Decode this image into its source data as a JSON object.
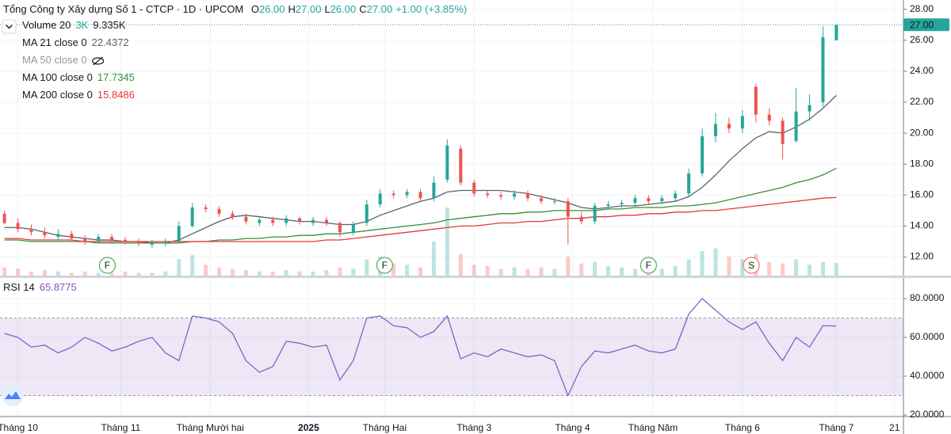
{
  "chart_data": [
    {
      "type": "candlestick",
      "title": "Tổng Công ty Xây dựng Số 1 - CTCP · 1D · UPCOM",
      "ohlc": [
        {
          "key": "O",
          "value": 26,
          "label": "26.00"
        },
        {
          "key": "H",
          "value": 27,
          "label": "27.00"
        },
        {
          "key": "L",
          "value": 26,
          "label": "26.00"
        },
        {
          "key": "C",
          "value": 27,
          "label": "27.00"
        }
      ],
      "change": [
        {
          "value": 1,
          "label": "+1.00"
        },
        {
          "value": 3.85,
          "label": "(+3.85%)"
        }
      ],
      "up_color": "#26a69a",
      "down_color": "#ef5350",
      "x": [
        1,
        4,
        7,
        10,
        13,
        16,
        19,
        22,
        25,
        28,
        31,
        34,
        37,
        40,
        43,
        46,
        49,
        52,
        55,
        58,
        61,
        64,
        67,
        70,
        73,
        76,
        79,
        82,
        85,
        88,
        91,
        94,
        97,
        100,
        103,
        106,
        109,
        112,
        115,
        118,
        121,
        124,
        127,
        130,
        133,
        136,
        139,
        142,
        145,
        148,
        151,
        154,
        157,
        160,
        163,
        166,
        169,
        172,
        175,
        178,
        181,
        184,
        187
      ],
      "open": [
        14.8,
        14.2,
        13.8,
        13.6,
        13.3,
        13.5,
        13.2,
        13.0,
        13.3,
        13.1,
        13.0,
        12.8,
        12.9,
        13.0,
        14.0,
        15.2,
        15.1,
        14.8,
        14.6,
        14.2,
        14.4,
        14.2,
        14.5,
        14.2,
        14.4,
        14.2,
        13.6,
        14.2,
        15.4,
        16.1,
        16.0,
        16.2,
        15.8,
        17.0,
        19.0,
        16.8,
        16.1,
        16.0,
        15.9,
        16.1,
        15.8,
        15.6,
        15.6,
        14.6,
        14.3,
        15.3,
        15.4,
        15.5,
        15.8,
        15.6,
        15.8,
        16.1,
        17.4,
        19.8,
        20.6,
        20.3,
        23.0,
        21.2,
        20.8,
        19.5,
        21.4,
        22.0,
        26.0
      ],
      "high": [
        15.0,
        14.5,
        14.1,
        13.9,
        13.8,
        13.7,
        13.4,
        13.5,
        13.5,
        13.3,
        13.2,
        13.1,
        13.2,
        14.3,
        15.5,
        15.4,
        15.3,
        15.0,
        14.8,
        14.6,
        14.6,
        14.7,
        14.6,
        14.6,
        14.6,
        14.3,
        14.3,
        15.7,
        16.4,
        16.3,
        16.4,
        16.4,
        17.2,
        19.6,
        19.2,
        17.0,
        16.3,
        16.2,
        16.3,
        16.3,
        16.0,
        15.8,
        15.8,
        14.9,
        15.5,
        15.6,
        15.7,
        16.0,
        16.0,
        16.0,
        16.3,
        17.7,
        20.3,
        21.3,
        21.0,
        21.5,
        23.2,
        21.6,
        21.0,
        22.9,
        22.5,
        26.9,
        27.0
      ],
      "low": [
        14.1,
        13.6,
        13.4,
        13.2,
        13.1,
        13.0,
        12.8,
        12.9,
        12.9,
        12.8,
        12.7,
        12.6,
        12.7,
        12.9,
        13.9,
        14.9,
        14.6,
        14.4,
        14.1,
        14.0,
        14.0,
        14.0,
        14.1,
        14.0,
        14.0,
        13.3,
        13.4,
        14.0,
        15.2,
        15.8,
        15.8,
        15.6,
        15.6,
        16.8,
        16.6,
        15.9,
        15.8,
        15.7,
        15.7,
        15.6,
        15.4,
        15.4,
        12.8,
        14.1,
        14.1,
        15.1,
        15.2,
        15.3,
        15.4,
        15.4,
        15.6,
        15.9,
        17.2,
        19.4,
        20.0,
        20.0,
        20.7,
        20.5,
        18.3,
        19.4,
        20.8,
        21.7,
        26.0
      ],
      "close": [
        14.2,
        13.8,
        13.6,
        13.4,
        13.5,
        13.2,
        13.0,
        13.3,
        13.1,
        13.0,
        12.9,
        12.9,
        13.0,
        14.0,
        15.2,
        15.1,
        14.8,
        14.6,
        14.3,
        14.4,
        14.2,
        14.5,
        14.3,
        14.4,
        14.2,
        13.6,
        14.1,
        15.4,
        16.1,
        16.0,
        16.2,
        15.8,
        16.8,
        19.2,
        16.8,
        16.1,
        16.0,
        15.9,
        16.1,
        15.8,
        15.6,
        15.6,
        14.6,
        14.3,
        15.3,
        15.4,
        15.5,
        15.8,
        15.6,
        15.8,
        16.1,
        17.4,
        19.8,
        20.6,
        20.3,
        21.1,
        21.2,
        20.8,
        19.3,
        21.4,
        21.8,
        26.2,
        27.0
      ],
      "volume": {
        "name": "Volume 20",
        "unit": "3K",
        "values": [
          6000,
          5000,
          3000,
          4000,
          3000,
          2000,
          3000,
          2000,
          2000,
          3000,
          2000,
          2000,
          3000,
          12000,
          15000,
          8000,
          6000,
          5000,
          4000,
          3000,
          3000,
          4000,
          3000,
          3000,
          4000,
          6000,
          5000,
          12000,
          14000,
          9000,
          8000,
          6000,
          25000,
          50000,
          16000,
          8000,
          7000,
          5000,
          6000,
          5000,
          6000,
          5000,
          14000,
          9000,
          10000,
          7000,
          6000,
          5000,
          6000,
          5000,
          7000,
          12000,
          18000,
          20000,
          14000,
          12000,
          16000,
          10000,
          9000,
          12000,
          8000,
          10000,
          9335
        ],
        "last": {
          "value": 9335,
          "label": "9.335K"
        }
      },
      "series": [
        {
          "name": "MA 21 close 0",
          "color": "#5d606b",
          "values": [
            13.9,
            13.9,
            13.8,
            13.6,
            13.4,
            13.3,
            13.2,
            13.1,
            13.1,
            13.0,
            13.0,
            12.9,
            12.9,
            13.1,
            13.5,
            13.9,
            14.3,
            14.6,
            14.7,
            14.6,
            14.5,
            14.4,
            14.3,
            14.3,
            14.2,
            14.1,
            14.1,
            14.3,
            14.7,
            15.0,
            15.3,
            15.6,
            15.8,
            16.2,
            16.3,
            16.3,
            16.3,
            16.3,
            16.2,
            16.1,
            15.9,
            15.7,
            15.5,
            15.2,
            15.1,
            15.2,
            15.3,
            15.3,
            15.4,
            15.5,
            15.6,
            15.9,
            16.5,
            17.3,
            18.2,
            19.0,
            19.7,
            20.1,
            20.0,
            20.4,
            20.9,
            21.6,
            22.4372
          ]
        },
        {
          "name": "MA 50 close 0",
          "hidden": true
        },
        {
          "name": "MA 100 close 0",
          "color": "#388e3c",
          "values": [
            13.1,
            13.1,
            13.0,
            13.0,
            13.0,
            13.0,
            13.0,
            12.9,
            12.9,
            12.9,
            12.9,
            12.9,
            12.9,
            12.9,
            13.0,
            13.0,
            13.1,
            13.1,
            13.2,
            13.2,
            13.3,
            13.3,
            13.4,
            13.4,
            13.5,
            13.5,
            13.6,
            13.7,
            13.8,
            13.9,
            14.0,
            14.1,
            14.2,
            14.4,
            14.5,
            14.6,
            14.7,
            14.8,
            14.8,
            14.9,
            14.9,
            15.0,
            15.0,
            15.0,
            15.0,
            15.1,
            15.1,
            15.2,
            15.2,
            15.2,
            15.3,
            15.3,
            15.4,
            15.5,
            15.7,
            15.9,
            16.1,
            16.3,
            16.5,
            16.8,
            17.0,
            17.3,
            17.7345
          ]
        },
        {
          "name": "MA 200 close 0",
          "color": "#e53935",
          "values": [
            13.2,
            13.2,
            13.1,
            13.1,
            13.1,
            13.1,
            13.0,
            13.0,
            13.0,
            13.0,
            13.0,
            13.0,
            13.0,
            13.0,
            13.0,
            13.0,
            13.0,
            13.0,
            13.0,
            13.0,
            13.0,
            13.0,
            13.0,
            13.0,
            13.1,
            13.1,
            13.2,
            13.3,
            13.4,
            13.5,
            13.6,
            13.7,
            13.8,
            13.9,
            14.0,
            14.0,
            14.1,
            14.2,
            14.2,
            14.3,
            14.3,
            14.4,
            14.5,
            14.5,
            14.6,
            14.6,
            14.7,
            14.7,
            14.8,
            14.8,
            14.9,
            14.9,
            15.0,
            15.0,
            15.1,
            15.2,
            15.3,
            15.4,
            15.5,
            15.6,
            15.7,
            15.8,
            15.8486
          ]
        }
      ],
      "events": [
        {
          "x": 24,
          "label": "F",
          "color": "#4caf50"
        },
        {
          "x": 86,
          "label": "F",
          "color": "#4caf50"
        },
        {
          "x": 145,
          "label": "F",
          "color": "#4caf50"
        },
        {
          "x": 168,
          "label": "S",
          "color": "#f57c52"
        }
      ],
      "last_price": {
        "value": 27,
        "label": "27.00",
        "color": "#26a69a"
      },
      "xlim": [
        0,
        202
      ],
      "xticks": [
        {
          "value": 4,
          "label": "Tháng 10"
        },
        {
          "value": 27,
          "label": "Tháng 11"
        },
        {
          "value": 47,
          "label": "Tháng Mười hai"
        },
        {
          "value": 69,
          "label": "2025",
          "bold": true
        },
        {
          "value": 86,
          "label": "Tháng Hai"
        },
        {
          "value": 106,
          "label": "Tháng 3"
        },
        {
          "value": 128,
          "label": "Tháng 4"
        },
        {
          "value": 146,
          "label": "Tháng Năm"
        },
        {
          "value": 166,
          "label": "Tháng 6"
        },
        {
          "value": 187,
          "label": "Tháng 7"
        },
        {
          "value": 200,
          "label": "21"
        }
      ],
      "ylim": [
        10.8,
        28.6
      ],
      "yticks": [
        {
          "value": 12,
          "label": "12.00"
        },
        {
          "value": 14,
          "label": "14.00"
        },
        {
          "value": 16,
          "label": "16.00"
        },
        {
          "value": 18,
          "label": "18.00"
        },
        {
          "value": 20,
          "label": "20.00"
        },
        {
          "value": 22,
          "label": "22.00"
        },
        {
          "value": 24,
          "label": "24.00"
        },
        {
          "value": 26,
          "label": "26.00"
        },
        {
          "value": 28,
          "label": "28.00"
        }
      ],
      "grid": true
    },
    {
      "type": "line",
      "name": "RSI 14",
      "color": "#7e57c2",
      "values": [
        62,
        60,
        55,
        56,
        52,
        55,
        60,
        57,
        53,
        55,
        58,
        60,
        52,
        48,
        71,
        70,
        68,
        62,
        48,
        42,
        45,
        58,
        57,
        55,
        56,
        38,
        48,
        70,
        71,
        66,
        65,
        60,
        63,
        71,
        49,
        52,
        50,
        54,
        52,
        50,
        51,
        48,
        30,
        45,
        53,
        52,
        54,
        56,
        53,
        52,
        54,
        72,
        80,
        74,
        68,
        64,
        68,
        57,
        48,
        60,
        55,
        66,
        65.8775
      ],
      "band": [
        30,
        70
      ],
      "ylim": [
        19.6,
        90.2
      ],
      "yticks": [
        {
          "value": 20,
          "label": "20.0000"
        },
        {
          "value": 40,
          "label": "40.0000"
        },
        {
          "value": 60,
          "label": "60.0000"
        },
        {
          "value": 80,
          "label": "80.0000"
        }
      ],
      "grid": true
    }
  ]
}
